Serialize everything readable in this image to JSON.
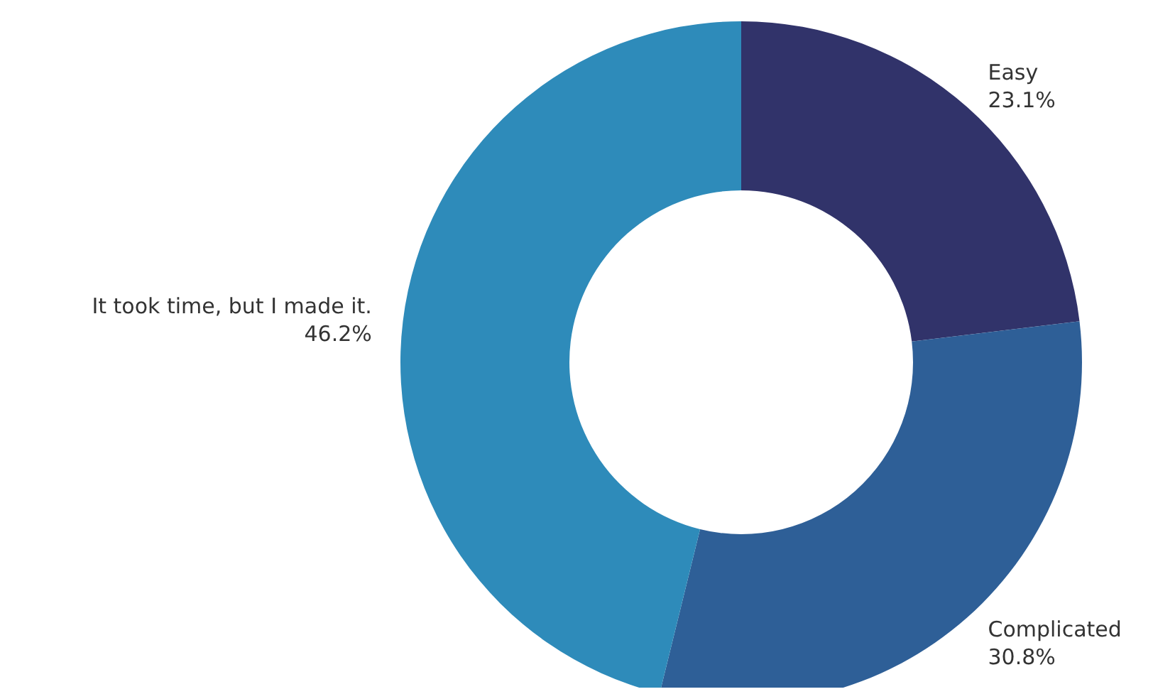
{
  "chart_data": {
    "type": "donut",
    "categories": [
      "Easy",
      "Complicated",
      "It took time, but I made it."
    ],
    "values": [
      23.1,
      30.8,
      46.2
    ],
    "colors": [
      "#31336a",
      "#2e5f97",
      "#2e8bba"
    ],
    "value_labels": [
      "23.1%",
      "30.8%",
      "46.2%"
    ],
    "legend": false
  }
}
